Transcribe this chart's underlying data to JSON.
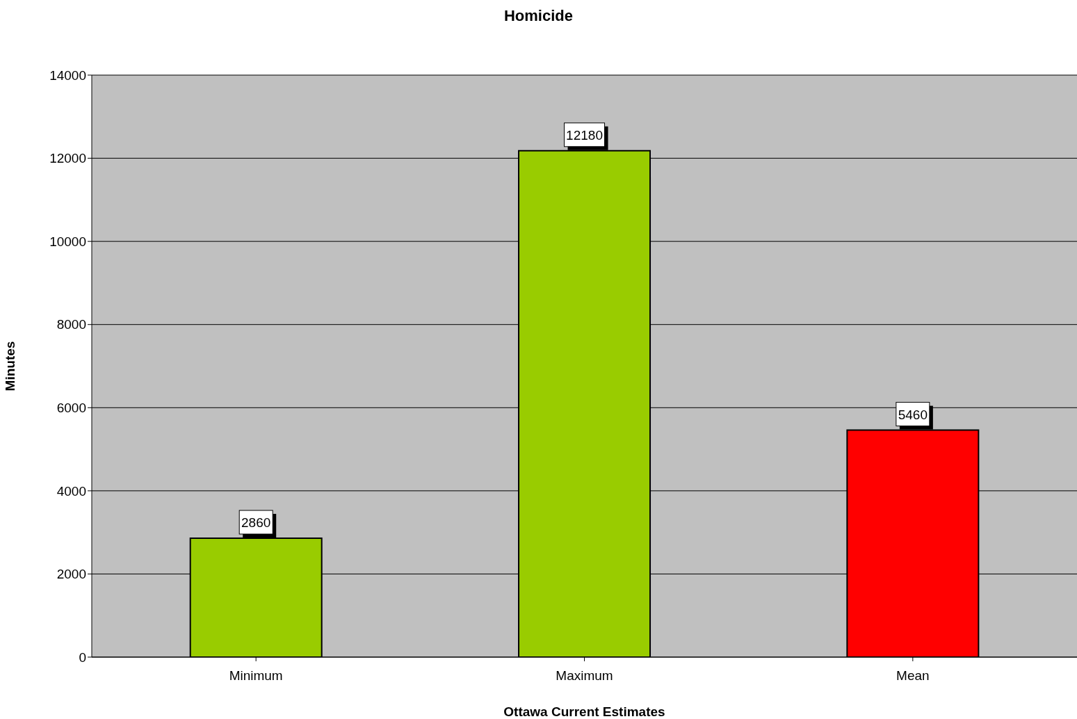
{
  "chart_data": {
    "type": "bar",
    "title": "Homicide",
    "xlabel": "Ottawa Current Estimates",
    "ylabel": "Minutes",
    "categories": [
      "Minimum",
      "Maximum",
      "Mean"
    ],
    "values": [
      2860,
      12180,
      5460
    ],
    "colors": [
      "#99cc00",
      "#99cc00",
      "#ff0000"
    ],
    "ylim": [
      0,
      14000
    ],
    "yticks": [
      0,
      2000,
      4000,
      6000,
      8000,
      10000,
      12000,
      14000
    ],
    "grid": "y",
    "data_labels": true
  }
}
